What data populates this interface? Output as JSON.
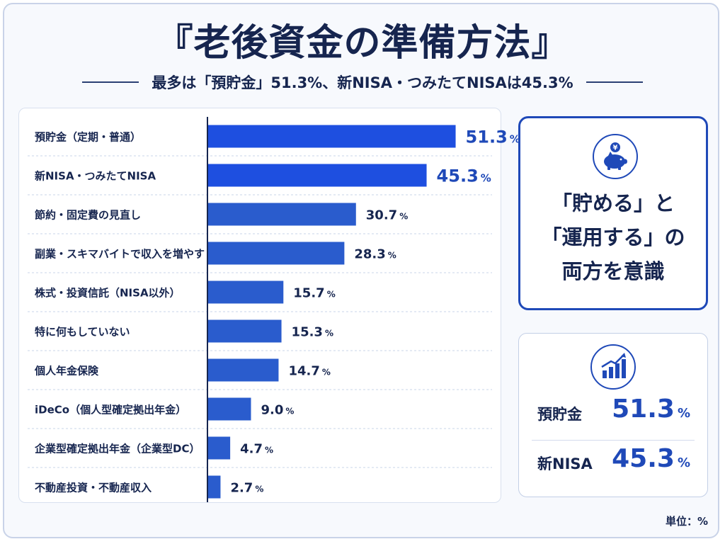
{
  "header": {
    "title": "『老後資金の準備方法』",
    "subtitle": "最多は「預貯金」51.3%、新NISA・つみたてNISAは45.3%"
  },
  "chart_data": {
    "type": "bar",
    "orientation": "horizontal",
    "categories": [
      "預貯金（定期・普通）",
      "新NISA・つみたてNISA",
      "節約・固定費の見直し",
      "副業・スキマバイトで収入を増やす",
      "株式・投資信託（NISA以外）",
      "特に何もしていない",
      "個人年金保険",
      "iDeCo（個人型確定拠出年金）",
      "企業型確定拠出年金（企業型DC）",
      "不動産投資・不動産収入"
    ],
    "values": [
      51.3,
      45.3,
      30.7,
      28.3,
      15.7,
      15.3,
      14.7,
      9.0,
      4.7,
      2.7
    ],
    "value_labels": [
      "51.3",
      "45.3",
      "30.7",
      "28.3",
      "15.7",
      "15.3",
      "14.7",
      "9.0",
      "4.7",
      "2.7"
    ],
    "value_suffix": "%",
    "xlim": [
      0,
      60
    ],
    "grid": false,
    "legend": "none",
    "colors": {
      "bar_top": "#1e4fe0",
      "bar": "#2a5ccd",
      "label_top": "#1f49b8",
      "label": "#16254f"
    }
  },
  "callout": {
    "icon": "piggy-bank-icon",
    "line1": "「貯める」と",
    "line2": "「運用する」の",
    "line3": "両方を意識"
  },
  "stats": {
    "icon": "growth-chart-icon",
    "items": [
      {
        "label": "預貯金",
        "value": "51.3",
        "unit": "%"
      },
      {
        "label": "新NISA",
        "value": "45.3",
        "unit": "%"
      }
    ]
  },
  "unit_note": "単位：%",
  "colors": {
    "accent": "#1f49b8",
    "navy": "#16254f"
  }
}
